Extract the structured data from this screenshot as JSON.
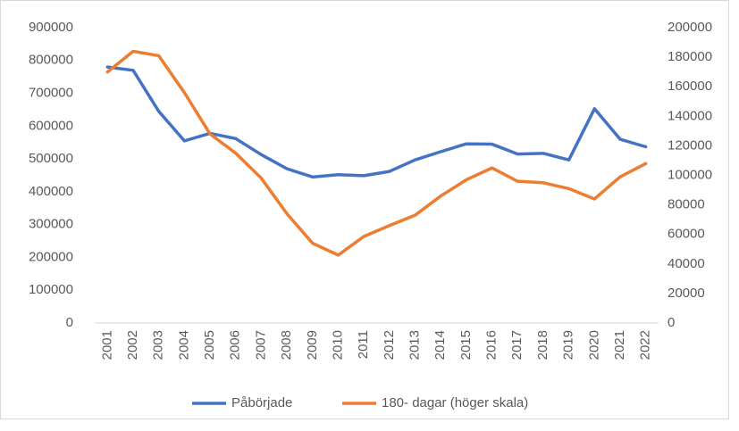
{
  "chart_data": {
    "type": "line",
    "categories": [
      "2001",
      "2002",
      "2003",
      "2004",
      "2005",
      "2006",
      "2007",
      "2008",
      "2009",
      "2010",
      "2011",
      "2012",
      "2013",
      "2014",
      "2015",
      "2016",
      "2017",
      "2018",
      "2019",
      "2020",
      "2021",
      "2022"
    ],
    "series": [
      {
        "name": "Påbörjade",
        "color": "#4472c4",
        "values": [
          780000,
          770000,
          645000,
          555000,
          578000,
          562000,
          513000,
          470000,
          445000,
          452000,
          449000,
          462000,
          497000,
          522000,
          546000,
          545000,
          515000,
          517000,
          497000,
          653000,
          560000,
          537000
        ]
      },
      {
        "name": "180- dagar (höger skala)",
        "color": "#ed7d31",
        "axis": "y2",
        "values": [
          170000,
          184000,
          181000,
          156000,
          128000,
          115000,
          98000,
          74000,
          54000,
          46000,
          58600,
          66000,
          73000,
          86000,
          97000,
          105000,
          96000,
          95000,
          91000,
          84000,
          99000,
          108000
        ]
      }
    ],
    "ylim": [
      0,
      900000
    ],
    "yticks": [
      0,
      100000,
      200000,
      300000,
      400000,
      500000,
      600000,
      700000,
      800000,
      900000
    ],
    "y2lim": [
      0,
      200000
    ],
    "y2ticks": [
      0,
      20000,
      40000,
      60000,
      80000,
      100000,
      120000,
      140000,
      160000,
      180000,
      200000
    ],
    "legend": "bottom"
  }
}
